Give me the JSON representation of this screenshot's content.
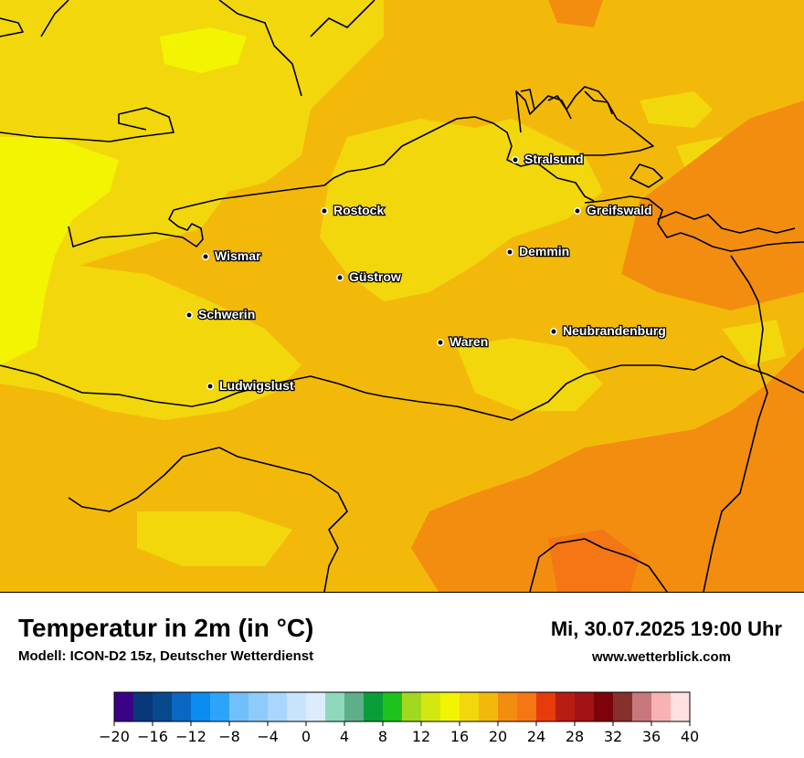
{
  "header": {
    "title": "Temperatur in 2m (in °C)",
    "model": "Modell: ICON-D2 15z, Deutscher Wetterdienst",
    "datetime": "Mi, 30.07.2025 19:00 Uhr",
    "website": "www.wetterblick.com"
  },
  "cities": [
    {
      "name": "Stralsund"
    },
    {
      "name": "Rostock"
    },
    {
      "name": "Greifswald"
    },
    {
      "name": "Wismar"
    },
    {
      "name": "Demmin"
    },
    {
      "name": "Güstrow"
    },
    {
      "name": "Schwerin"
    },
    {
      "name": "Neubrandenburg"
    },
    {
      "name": "Waren"
    },
    {
      "name": "Ludwigslust"
    }
  ],
  "legend": {
    "unit": "°C",
    "range": [
      -20,
      40
    ],
    "step": 2,
    "tick_labels": [
      "−20",
      "−16",
      "−12",
      "−8",
      "−4",
      "0",
      "4",
      "8",
      "12",
      "16",
      "20",
      "24",
      "28",
      "32",
      "36",
      "40"
    ],
    "colors": [
      "#3a0387",
      "#08377a",
      "#064a8c",
      "#0a67c2",
      "#0b8cef",
      "#2ba4fa",
      "#6fc0fb",
      "#8ecbfb",
      "#a8d6fd",
      "#c7e4fd",
      "#dcecfd",
      "#8fd8bd",
      "#5eae8a",
      "#099e3a",
      "#1ec21c",
      "#a2d81d",
      "#d4e80f",
      "#f2f401",
      "#f2d70d",
      "#f3b90a",
      "#f38d10",
      "#f47615",
      "#e63b0b",
      "#b81d12",
      "#a31214",
      "#7b0309",
      "#86302e",
      "#c7787c",
      "#f8b2b2",
      "#ffe1e2"
    ]
  },
  "map_colors": {
    "t12_14": "#f2f401",
    "t14_16": "#f2d70d",
    "t16_18": "#f3b90a",
    "t18_20": "#f38d10",
    "t20_22": "#f47615",
    "coast": "#000000"
  }
}
